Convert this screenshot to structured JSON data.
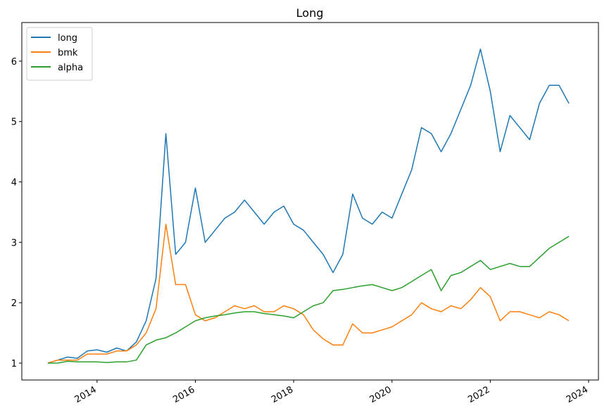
{
  "chart_data": {
    "type": "line",
    "title": "Long",
    "x": [
      2013.0,
      2013.2,
      2013.4,
      2013.6,
      2013.8,
      2014.0,
      2014.2,
      2014.4,
      2014.6,
      2014.8,
      2015.0,
      2015.2,
      2015.4,
      2015.6,
      2015.8,
      2016.0,
      2016.2,
      2016.4,
      2016.6,
      2016.8,
      2017.0,
      2017.2,
      2017.4,
      2017.6,
      2017.8,
      2018.0,
      2018.2,
      2018.4,
      2018.6,
      2018.8,
      2019.0,
      2019.2,
      2019.4,
      2019.6,
      2019.8,
      2020.0,
      2020.2,
      2020.4,
      2020.6,
      2020.8,
      2021.0,
      2021.2,
      2021.4,
      2021.6,
      2021.8,
      2022.0,
      2022.2,
      2022.4,
      2022.6,
      2022.8,
      2023.0,
      2023.2,
      2023.4,
      2023.6
    ],
    "series": [
      {
        "name": "long",
        "color": "#1f77b4",
        "values": [
          1.0,
          1.05,
          1.1,
          1.08,
          1.2,
          1.22,
          1.18,
          1.25,
          1.2,
          1.35,
          1.7,
          2.4,
          4.8,
          2.8,
          3.0,
          3.9,
          3.0,
          3.2,
          3.4,
          3.5,
          3.7,
          3.5,
          3.3,
          3.5,
          3.6,
          3.3,
          3.2,
          3.0,
          2.8,
          2.5,
          2.8,
          3.8,
          3.4,
          3.3,
          3.5,
          3.4,
          3.8,
          4.2,
          4.9,
          4.8,
          4.5,
          4.8,
          5.2,
          5.6,
          6.2,
          5.5,
          4.5,
          5.1,
          4.9,
          4.7,
          5.3,
          5.6,
          5.6,
          5.3
        ]
      },
      {
        "name": "bmk",
        "color": "#ff7f0e",
        "values": [
          1.0,
          1.05,
          1.05,
          1.05,
          1.15,
          1.15,
          1.15,
          1.2,
          1.2,
          1.3,
          1.5,
          1.9,
          3.3,
          2.3,
          2.3,
          1.8,
          1.7,
          1.75,
          1.85,
          1.95,
          1.9,
          1.95,
          1.85,
          1.85,
          1.95,
          1.9,
          1.8,
          1.55,
          1.4,
          1.3,
          1.3,
          1.65,
          1.5,
          1.5,
          1.55,
          1.6,
          1.7,
          1.8,
          2.0,
          1.9,
          1.85,
          1.95,
          1.9,
          2.05,
          2.25,
          2.1,
          1.7,
          1.85,
          1.85,
          1.8,
          1.75,
          1.85,
          1.8,
          1.7
        ]
      },
      {
        "name": "alpha",
        "color": "#2ca02c",
        "values": [
          1.0,
          1.0,
          1.03,
          1.02,
          1.02,
          1.02,
          1.01,
          1.02,
          1.02,
          1.05,
          1.3,
          1.38,
          1.42,
          1.5,
          1.6,
          1.7,
          1.75,
          1.78,
          1.8,
          1.83,
          1.85,
          1.85,
          1.82,
          1.8,
          1.78,
          1.75,
          1.85,
          1.95,
          2.0,
          2.2,
          2.22,
          2.25,
          2.28,
          2.3,
          2.25,
          2.2,
          2.25,
          2.35,
          2.45,
          2.55,
          2.2,
          2.45,
          2.5,
          2.6,
          2.7,
          2.55,
          2.6,
          2.65,
          2.6,
          2.6,
          2.75,
          2.9,
          3.0,
          3.1
        ]
      }
    ],
    "xlim": [
      2012.47,
      2024.2
    ],
    "xticks": [
      2014,
      2016,
      2018,
      2020,
      2022,
      2024
    ],
    "ylim": [
      0.72,
      6.64
    ],
    "yticks": [
      1,
      2,
      3,
      4,
      5,
      6
    ],
    "grid": false,
    "legend": "upper-left"
  }
}
